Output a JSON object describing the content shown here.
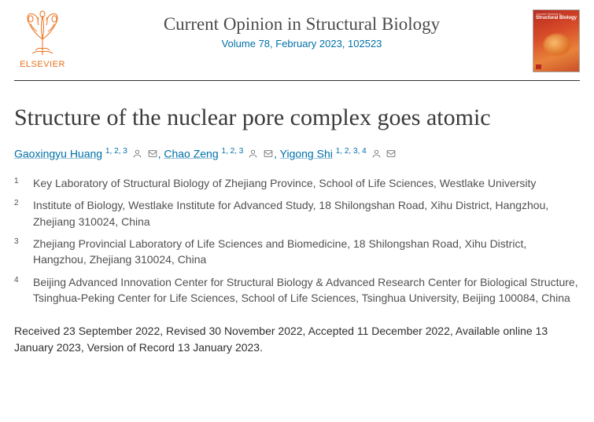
{
  "publisher": {
    "name": "ELSEVIER",
    "logo_color": "#e9711c"
  },
  "journal": {
    "title": "Current Opinion in Structural Biology",
    "issue": "Volume 78, February 2023, 102523",
    "cover": {
      "category": "Current Opinion in",
      "name": "Structural Biology"
    }
  },
  "article": {
    "title": "Structure of the nuclear pore complex goes atomic"
  },
  "authors": [
    {
      "name": "Gaoxingyu Huang",
      "affs": "1, 2, 3",
      "person": true,
      "mail": true
    },
    {
      "name": "Chao Zeng",
      "affs": "1, 2, 3",
      "person": true,
      "mail": true
    },
    {
      "name": "Yigong Shi",
      "affs": "1, 2, 3, 4",
      "person": true,
      "mail": true
    }
  ],
  "affiliations": [
    {
      "n": "1",
      "text": "Key Laboratory of Structural Biology of Zhejiang Province, School of Life Sciences, Westlake University"
    },
    {
      "n": "2",
      "text": "Institute of Biology, Westlake Institute for Advanced Study, 18 Shilongshan Road, Xihu District, Hangzhou, Zhejiang 310024, China"
    },
    {
      "n": "3",
      "text": "Zhejiang Provincial Laboratory of Life Sciences and Biomedicine, 18 Shilongshan Road, Xihu District, Hangzhou, Zhejiang 310024, China"
    },
    {
      "n": "4",
      "text": "Beijing Advanced Innovation Center for Structural Biology & Advanced Research Center for Biological Structure, Tsinghua-Peking Center for Life Sciences, School of Life Sciences, Tsinghua University, Beijing 100084, China"
    }
  ],
  "dates": "Received 23 September 2022, Revised 30 November 2022, Accepted 11 December 2022, Available online 13 January 2023, Version of Record 13 January 2023.",
  "colors": {
    "link": "#0070a8",
    "text": "#2a2a2a",
    "rule": "#333333"
  }
}
